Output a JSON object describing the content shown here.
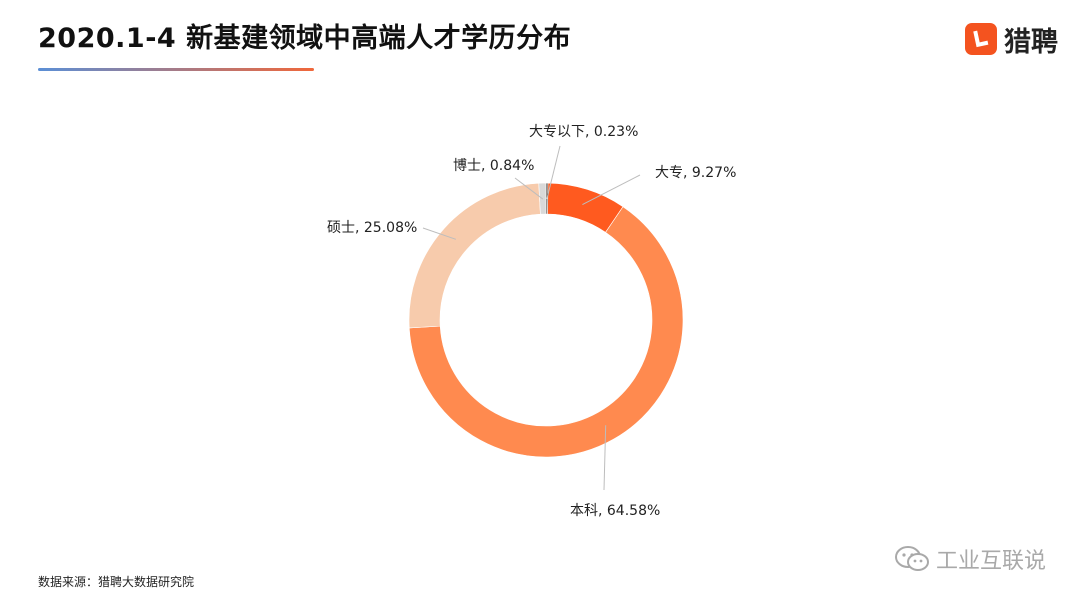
{
  "header": {
    "title": "2020.1-4 新基建领域中高端人才学历分布",
    "logo_text": "猎聘",
    "logo_icon": "liepin-logo-icon",
    "logo_color": "#f4531f"
  },
  "footer": {
    "source": "数据来源：猎聘大数据研究院",
    "watermark": "工业互联说",
    "watermark_icon": "wechat-icon"
  },
  "chart_data": {
    "type": "pie",
    "variant": "donut",
    "title": "",
    "series": [
      {
        "label": "大专以下",
        "value": 0.23,
        "display": "大专以下, 0.23%",
        "color": "#4a3f3a"
      },
      {
        "label": "大专",
        "value": 9.27,
        "display": "大专, 9.27%",
        "color": "#ff5a1f"
      },
      {
        "label": "本科",
        "value": 64.58,
        "display": "本科, 64.58%",
        "color": "#ff8a4f"
      },
      {
        "label": "硕士",
        "value": 25.08,
        "display": "硕士, 25.08%",
        "color": "#f7cbac"
      },
      {
        "label": "博士",
        "value": 0.84,
        "display": "博士, 0.84%",
        "color": "#d9d9d9"
      }
    ],
    "legend": "none",
    "unit": "%"
  }
}
